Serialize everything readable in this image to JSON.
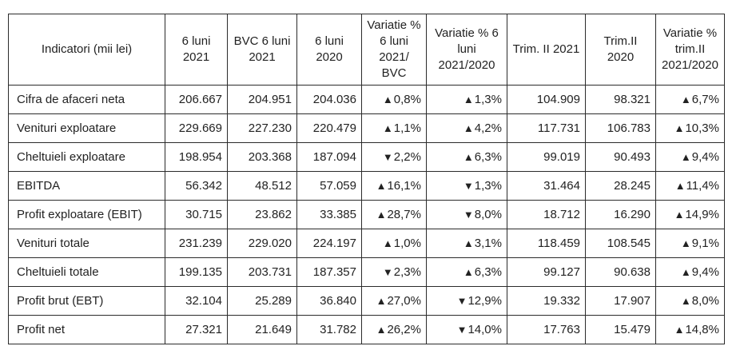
{
  "table": {
    "headers": [
      "Indicatori (mii lei)",
      "6 luni 2021",
      "BVC 6 luni 2021",
      "6 luni 2020",
      "Variatie % 6 luni 2021/ BVC",
      "Variatie % 6 luni 2021/2020",
      "Trim. II 2021",
      "Trim.II 2020",
      "Variatie % trim.II 2021/2020"
    ],
    "rows": [
      {
        "label": "Cifra de afaceri neta",
        "values": [
          "206.667",
          "204.951",
          "204.036"
        ],
        "var_bvc": {
          "dir": "up",
          "value": "0,8%"
        },
        "var_6luni": {
          "dir": "up",
          "value": "1,3%"
        },
        "trim": [
          "104.909",
          "98.321"
        ],
        "var_trim": {
          "dir": "up",
          "value": "6,7%"
        }
      },
      {
        "label": "Venituri exploatare",
        "values": [
          "229.669",
          "227.230",
          "220.479"
        ],
        "var_bvc": {
          "dir": "up",
          "value": "1,1%"
        },
        "var_6luni": {
          "dir": "up",
          "value": "4,2%"
        },
        "trim": [
          "117.731",
          "106.783"
        ],
        "var_trim": {
          "dir": "up",
          "value": "10,3%"
        }
      },
      {
        "label": "Cheltuieli exploatare",
        "values": [
          "198.954",
          "203.368",
          "187.094"
        ],
        "var_bvc": {
          "dir": "down",
          "value": "2,2%"
        },
        "var_6luni": {
          "dir": "up",
          "value": "6,3%"
        },
        "trim": [
          "99.019",
          "90.493"
        ],
        "var_trim": {
          "dir": "up",
          "value": "9,4%"
        }
      },
      {
        "label": "EBITDA",
        "values": [
          "56.342",
          "48.512",
          "57.059"
        ],
        "var_bvc": {
          "dir": "up",
          "value": "16,1%"
        },
        "var_6luni": {
          "dir": "down",
          "value": "1,3%"
        },
        "trim": [
          "31.464",
          "28.245"
        ],
        "var_trim": {
          "dir": "up",
          "value": "11,4%"
        }
      },
      {
        "label": "Profit exploatare (EBIT)",
        "values": [
          "30.715",
          "23.862",
          "33.385"
        ],
        "var_bvc": {
          "dir": "up",
          "value": "28,7%"
        },
        "var_6luni": {
          "dir": "down",
          "value": "8,0%"
        },
        "trim": [
          "18.712",
          "16.290"
        ],
        "var_trim": {
          "dir": "up",
          "value": "14,9%"
        }
      },
      {
        "label": "Venituri totale",
        "values": [
          "231.239",
          "229.020",
          "224.197"
        ],
        "var_bvc": {
          "dir": "up",
          "value": "1,0%"
        },
        "var_6luni": {
          "dir": "up",
          "value": "3,1%"
        },
        "trim": [
          "118.459",
          "108.545"
        ],
        "var_trim": {
          "dir": "up",
          "value": "9,1%"
        }
      },
      {
        "label": "Cheltuieli totale",
        "values": [
          "199.135",
          "203.731",
          "187.357"
        ],
        "var_bvc": {
          "dir": "down",
          "value": "2,3%"
        },
        "var_6luni": {
          "dir": "up",
          "value": "6,3%"
        },
        "trim": [
          "99.127",
          "90.638"
        ],
        "var_trim": {
          "dir": "up",
          "value": "9,4%"
        }
      },
      {
        "label": "Profit brut (EBT)",
        "values": [
          "32.104",
          "25.289",
          "36.840"
        ],
        "var_bvc": {
          "dir": "up",
          "value": "27,0%"
        },
        "var_6luni": {
          "dir": "down",
          "value": "12,9%"
        },
        "trim": [
          "19.332",
          "17.907"
        ],
        "var_trim": {
          "dir": "up",
          "value": "8,0%"
        }
      },
      {
        "label": "Profit net",
        "values": [
          "27.321",
          "21.649",
          "31.782"
        ],
        "var_bvc": {
          "dir": "up",
          "value": "26,2%"
        },
        "var_6luni": {
          "dir": "down",
          "value": "14,0%"
        },
        "trim": [
          "17.763",
          "15.479"
        ],
        "var_trim": {
          "dir": "up",
          "value": "14,8%"
        }
      }
    ]
  }
}
